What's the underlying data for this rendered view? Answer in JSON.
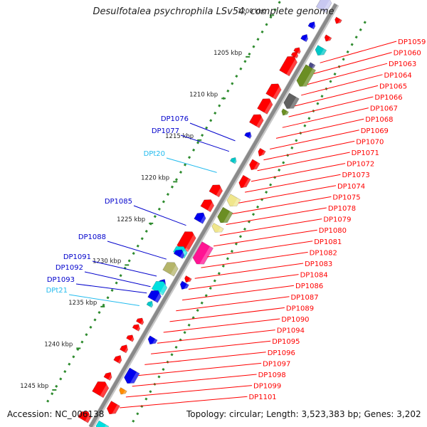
{
  "title": "Desulfotalea psychrophila LSv54, complete genome",
  "footer": {
    "accession": "Accession: NC_006138",
    "topology": "Topology: circular; Length: 3,523,383 bp; Genes: 3,202"
  },
  "colors": {
    "right_label": "#ff0000",
    "left_label": "#0000cc",
    "rna_label": "#22bbee",
    "backbone": "#8a8a8a",
    "dots": "#2e8b2e"
  },
  "kbp_ticks": [
    "1200 kbp",
    "1205 kbp",
    "1210 kbp",
    "1215 kbp",
    "1220 kbp",
    "1225 kbp",
    "1230 kbp",
    "1235 kbp",
    "1240 kbp",
    "1245 kbp"
  ],
  "right_labels": [
    "DP1059",
    "DP1060",
    "DP1063",
    "DP1064",
    "DP1065",
    "DP1066",
    "DP1067",
    "DP1068",
    "DP1069",
    "DP1070",
    "DP1071",
    "DP1072",
    "DP1073",
    "DP1074",
    "DP1075",
    "DP1078",
    "DP1079",
    "DP1080",
    "DP1081",
    "DP1082",
    "DP1083",
    "DP1084",
    "DP1086",
    "DP1087",
    "DP1089",
    "DP1090",
    "DP1094",
    "DP1095",
    "DP1096",
    "DP1097",
    "DP1098",
    "DP1099",
    "DP1101"
  ],
  "left_labels": [
    {
      "text": "DP1076",
      "type": "cds"
    },
    {
      "text": "DP1077",
      "type": "cds"
    },
    {
      "text": "DPt20",
      "type": "rna"
    },
    {
      "text": "DP1085",
      "type": "cds"
    },
    {
      "text": "DP1088",
      "type": "cds"
    },
    {
      "text": "DP1091",
      "type": "cds"
    },
    {
      "text": "DP1092",
      "type": "cds"
    },
    {
      "text": "DP1093",
      "type": "cds"
    },
    {
      "text": "DPt21",
      "type": "rna"
    }
  ],
  "features": [
    {
      "pos": 0.01,
      "side": "in",
      "color": "#c8c8f0",
      "len": 0.03,
      "h": 16
    },
    {
      "pos": 0.028,
      "side": "out",
      "color": "#ff0000",
      "len": 0.012,
      "h": 9
    },
    {
      "pos": 0.06,
      "side": "in",
      "color": "#0000ee",
      "len": 0.014,
      "h": 9
    },
    {
      "pos": 0.07,
      "side": "out",
      "color": "#ff0000",
      "len": 0.012,
      "h": 9
    },
    {
      "pos": 0.09,
      "side": "in",
      "color": "#0000ee",
      "len": 0.014,
      "h": 9
    },
    {
      "pos": 0.1,
      "side": "out",
      "color": "#00c8c8",
      "len": 0.018,
      "h": 14
    },
    {
      "pos": 0.12,
      "side": "in",
      "color": "#ff0000",
      "len": 0.01,
      "h": 9
    },
    {
      "pos": 0.13,
      "side": "in",
      "color": "#ff0000",
      "len": 0.01,
      "h": 9
    },
    {
      "pos": 0.135,
      "side": "out",
      "color": "#4a4a8a",
      "len": 0.012,
      "h": 8
    },
    {
      "pos": 0.155,
      "side": "in",
      "color": "#ff0000",
      "len": 0.04,
      "h": 16
    },
    {
      "pos": 0.16,
      "side": "out",
      "color": "#6b8e23",
      "len": 0.045,
      "h": 16
    },
    {
      "pos": 0.215,
      "side": "in",
      "color": "#ff0000",
      "len": 0.03,
      "h": 16
    },
    {
      "pos": 0.22,
      "side": "out",
      "color": "#606060",
      "len": 0.03,
      "h": 16
    },
    {
      "pos": 0.245,
      "side": "out",
      "color": "#6b8e23",
      "len": 0.012,
      "h": 9
    },
    {
      "pos": 0.25,
      "side": "in",
      "color": "#ff0000",
      "len": 0.03,
      "h": 16
    },
    {
      "pos": 0.285,
      "side": "in",
      "color": "#ff0000",
      "len": 0.025,
      "h": 16
    },
    {
      "pos": 0.32,
      "side": "in",
      "color": "#0000ee",
      "len": 0.012,
      "h": 9
    },
    {
      "pos": 0.34,
      "side": "out",
      "color": "#ff0000",
      "len": 0.015,
      "h": 9
    },
    {
      "pos": 0.37,
      "side": "out",
      "color": "#ff0000",
      "len": 0.02,
      "h": 12
    },
    {
      "pos": 0.38,
      "side": "in",
      "color": "#00c8c8",
      "len": 0.01,
      "h": 8
    },
    {
      "pos": 0.41,
      "side": "out",
      "color": "#ff0000",
      "len": 0.025,
      "h": 12
    },
    {
      "pos": 0.45,
      "side": "in",
      "color": "#ff0000",
      "len": 0.022,
      "h": 16
    },
    {
      "pos": 0.455,
      "side": "out",
      "color": "#f0e68c",
      "len": 0.022,
      "h": 16
    },
    {
      "pos": 0.485,
      "side": "in",
      "color": "#ff0000",
      "len": 0.022,
      "h": 16
    },
    {
      "pos": 0.49,
      "side": "out",
      "color": "#6b8e23",
      "len": 0.03,
      "h": 16
    },
    {
      "pos": 0.515,
      "side": "in",
      "color": "#0000ee",
      "len": 0.02,
      "h": 14
    },
    {
      "pos": 0.52,
      "side": "out",
      "color": "#f0e68c",
      "len": 0.015,
      "h": 16
    },
    {
      "pos": 0.57,
      "side": "in",
      "color": "#ff0000",
      "len": 0.04,
      "h": 18
    },
    {
      "pos": 0.58,
      "side": "out",
      "color": "#ff1493",
      "len": 0.045,
      "h": 18
    },
    {
      "pos": 0.595,
      "side": "in",
      "color": "#00e0e0",
      "len": 0.02,
      "h": 18
    },
    {
      "pos": 0.6,
      "side": "in",
      "color": "#0000ee",
      "len": 0.015,
      "h": 14
    },
    {
      "pos": 0.635,
      "side": "in",
      "color": "#b5b56a",
      "len": 0.025,
      "h": 18
    },
    {
      "pos": 0.64,
      "side": "out",
      "color": "#ff0000",
      "len": 0.012,
      "h": 9
    },
    {
      "pos": 0.655,
      "side": "out",
      "color": "#0000ee",
      "len": 0.015,
      "h": 11
    },
    {
      "pos": 0.67,
      "side": "in",
      "color": "#0000ee",
      "len": 0.015,
      "h": 10
    },
    {
      "pos": 0.68,
      "side": "in",
      "color": "#00e0e0",
      "len": 0.025,
      "h": 18
    },
    {
      "pos": 0.7,
      "side": "in",
      "color": "#0000ee",
      "len": 0.022,
      "h": 16
    },
    {
      "pos": 0.72,
      "side": "in",
      "color": "#00c8c8",
      "len": 0.01,
      "h": 8
    },
    {
      "pos": 0.76,
      "side": "in",
      "color": "#ff0000",
      "len": 0.012,
      "h": 10
    },
    {
      "pos": 0.775,
      "side": "in",
      "color": "#ff0000",
      "len": 0.012,
      "h": 10
    },
    {
      "pos": 0.785,
      "side": "out",
      "color": "#0000ee",
      "len": 0.015,
      "h": 12
    },
    {
      "pos": 0.8,
      "side": "in",
      "color": "#ff0000",
      "len": 0.012,
      "h": 10
    },
    {
      "pos": 0.825,
      "side": "in",
      "color": "#ff0000",
      "len": 0.015,
      "h": 10
    },
    {
      "pos": 0.85,
      "side": "in",
      "color": "#ff0000",
      "len": 0.015,
      "h": 10
    },
    {
      "pos": 0.87,
      "side": "out",
      "color": "#0000ee",
      "len": 0.03,
      "h": 16
    },
    {
      "pos": 0.89,
      "side": "in",
      "color": "#ff0000",
      "len": 0.015,
      "h": 10
    },
    {
      "pos": 0.905,
      "side": "out",
      "color": "#ff8c00",
      "len": 0.012,
      "h": 10
    },
    {
      "pos": 0.92,
      "side": "in",
      "color": "#ff0000",
      "len": 0.03,
      "h": 18
    },
    {
      "pos": 0.945,
      "side": "out",
      "color": "#ff0000",
      "len": 0.025,
      "h": 14
    },
    {
      "pos": 0.985,
      "side": "in",
      "color": "#ff0000",
      "len": 0.02,
      "h": 16
    },
    {
      "pos": 0.99,
      "side": "out",
      "color": "#00e0e0",
      "len": 0.02,
      "h": 16
    }
  ]
}
